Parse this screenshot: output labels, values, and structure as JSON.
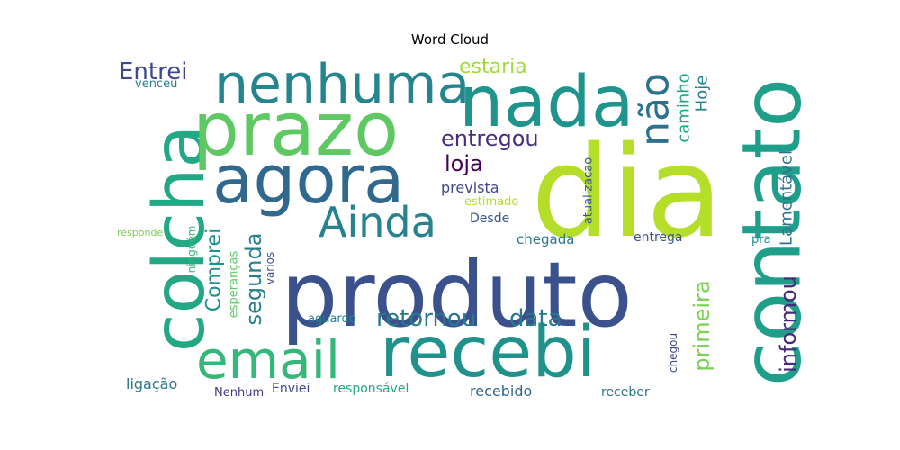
{
  "chart_data": {
    "type": "wordcloud",
    "title": "Word Cloud",
    "background": "#ffffff",
    "palette": "viridis",
    "words": [
      {
        "text": "dia",
        "color": "#b5de2b"
      },
      {
        "text": "produto",
        "color": "#3b518b"
      },
      {
        "text": "contato",
        "color": "#1f9e89"
      },
      {
        "text": "colcha",
        "color": "#22a884"
      },
      {
        "text": "prazo",
        "color": "#5ec962"
      },
      {
        "text": "nada",
        "color": "#1f948c"
      },
      {
        "text": "recebi",
        "color": "#21918c"
      },
      {
        "text": "agora",
        "color": "#31688e"
      },
      {
        "text": "nenhuma",
        "color": "#25858e"
      },
      {
        "text": "email",
        "color": "#35b779"
      },
      {
        "text": "Ainda",
        "color": "#26828e"
      },
      {
        "text": "não",
        "color": "#2c728e"
      },
      {
        "text": "retornou",
        "color": "#2a788e"
      },
      {
        "text": "data",
        "color": "#2a788e"
      },
      {
        "text": "entregou",
        "color": "#472d7b"
      },
      {
        "text": "loja",
        "color": "#440154"
      },
      {
        "text": "Entrei",
        "color": "#3e4989"
      },
      {
        "text": "estaria",
        "color": "#a0da39"
      },
      {
        "text": "informou",
        "color": "#482878"
      },
      {
        "text": "primeira",
        "color": "#7ad151"
      },
      {
        "text": "segunda",
        "color": "#277f8e"
      },
      {
        "text": "Comprei",
        "color": "#21918c"
      },
      {
        "text": "caminho",
        "color": "#20a386"
      },
      {
        "text": "Hoje",
        "color": "#26828e"
      },
      {
        "text": "Lamentável",
        "color": "#2d708e"
      },
      {
        "text": "prevista",
        "color": "#3e4989"
      },
      {
        "text": "recebido",
        "color": "#31688e"
      },
      {
        "text": "ligação",
        "color": "#2a788e"
      },
      {
        "text": "chegada",
        "color": "#2a788e"
      },
      {
        "text": "entrega",
        "color": "#3b528b"
      },
      {
        "text": "Desde",
        "color": "#39568c"
      },
      {
        "text": "aguardo",
        "color": "#26828e"
      },
      {
        "text": "Nenhum",
        "color": "#443a83"
      },
      {
        "text": "Enviei",
        "color": "#3e4989"
      },
      {
        "text": "responsável",
        "color": "#22a884"
      },
      {
        "text": "receber",
        "color": "#2a788e"
      },
      {
        "text": "atualizacao",
        "color": "#39568c"
      },
      {
        "text": "estimado",
        "color": "#b5de2b"
      },
      {
        "text": "vários",
        "color": "#3b528b"
      },
      {
        "text": "esperanças",
        "color": "#5ec962"
      },
      {
        "text": "ninguém",
        "color": "#35b779"
      },
      {
        "text": "chegou",
        "color": "#3e4989"
      },
      {
        "text": "venceu",
        "color": "#287c8e"
      },
      {
        "text": "pra",
        "color": "#21918c"
      },
      {
        "text": "responde",
        "color": "#7ad151"
      }
    ]
  }
}
